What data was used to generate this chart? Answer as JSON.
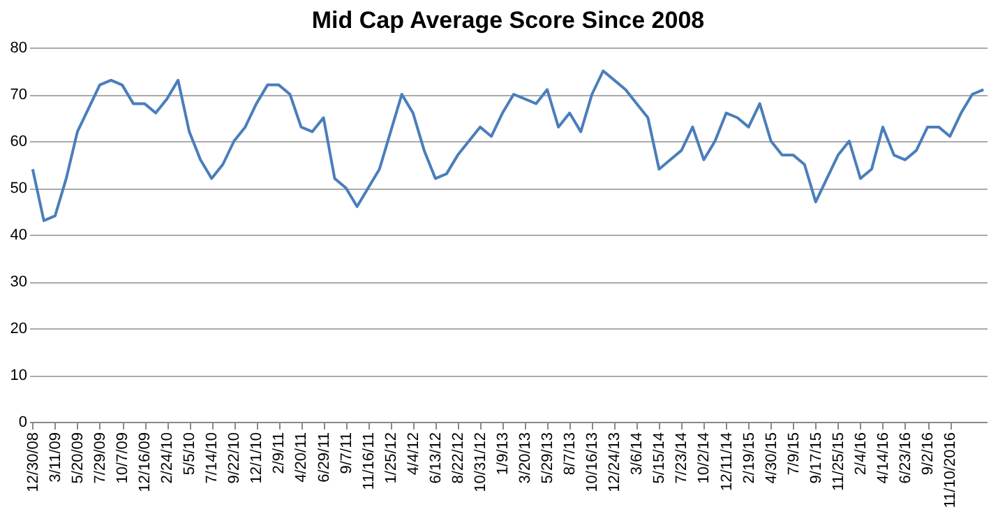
{
  "chart_data": {
    "type": "line",
    "title": "Mid Cap Average Score Since 2008",
    "categories": [
      "12/30/08",
      null,
      "3/11/09",
      null,
      "5/20/09",
      null,
      "7/29/09",
      null,
      "10/7/09",
      null,
      "12/16/09",
      null,
      "2/24/10",
      null,
      "5/5/10",
      null,
      "7/14/10",
      null,
      "9/22/10",
      null,
      "12/1/10",
      null,
      "2/9/11",
      null,
      "4/20/11",
      null,
      "6/29/11",
      null,
      "9/7/11",
      null,
      "11/16/11",
      null,
      "1/25/12",
      null,
      "4/4/12",
      null,
      "6/13/12",
      null,
      "8/22/12",
      null,
      "10/31/12",
      null,
      "1/9/13",
      null,
      "3/20/13",
      null,
      "5/29/13",
      null,
      "8/7/13",
      null,
      "10/16/13",
      null,
      "12/24/13",
      null,
      "3/6/14",
      null,
      "5/15/14",
      null,
      "7/23/14",
      null,
      "10/2/14",
      null,
      "12/11/14",
      null,
      "2/19/15",
      null,
      "4/30/15",
      null,
      "7/9/15",
      null,
      "9/17/15",
      null,
      "11/25/15",
      null,
      "2/4/16",
      null,
      "4/14/16",
      null,
      "6/23/16",
      null,
      "9/2/16",
      null,
      "11/10/2016",
      null,
      null,
      null
    ],
    "series": [
      {
        "color": "#4a7ebb",
        "values": [
          54,
          43,
          44,
          52,
          62,
          67,
          72,
          73,
          72,
          68,
          68,
          66,
          69,
          73,
          62,
          56,
          52,
          55,
          60,
          63,
          68,
          72,
          72,
          70,
          63,
          62,
          65,
          52,
          50,
          46,
          50,
          54,
          62,
          70,
          66,
          58,
          52,
          53,
          57,
          60,
          63,
          61,
          66,
          70,
          69,
          68,
          71,
          63,
          66,
          62,
          70,
          75,
          73,
          71,
          68,
          65,
          54,
          56,
          58,
          63,
          56,
          60,
          66,
          65,
          63,
          68,
          60,
          57,
          57,
          55,
          47,
          52,
          57,
          60,
          52,
          54,
          63,
          57,
          56,
          58,
          63,
          63,
          61,
          66,
          70,
          71
        ]
      }
    ],
    "ylim": [
      0,
      80
    ],
    "yticks": [
      0,
      10,
      20,
      30,
      40,
      50,
      60,
      70,
      80
    ],
    "grid": "y"
  }
}
